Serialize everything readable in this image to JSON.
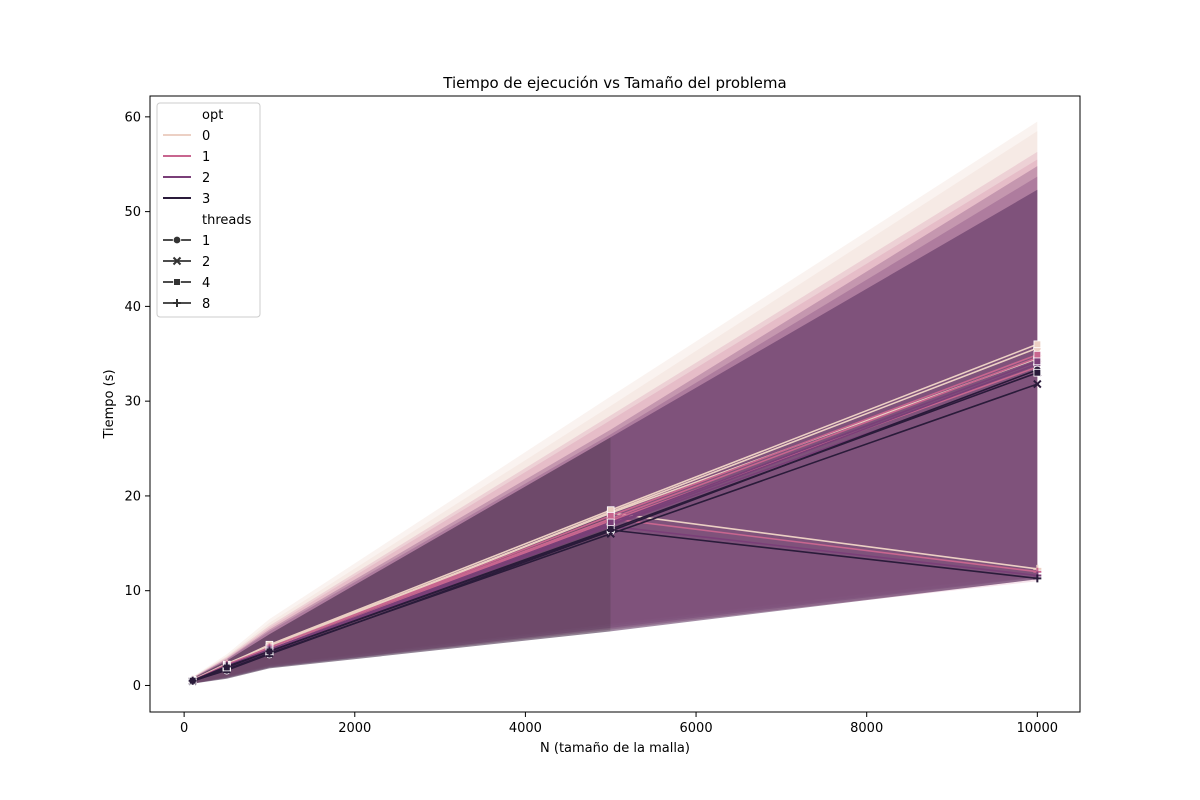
{
  "chart_data": {
    "type": "line",
    "title": "Tiempo de ejecución vs Tamaño del problema",
    "xlabel": "N (tamaño de la malla)",
    "ylabel": "Tiempo (s)",
    "xlim": [
      -400,
      10500
    ],
    "ylim": [
      -2.8,
      62.2
    ],
    "xticks": [
      0,
      2000,
      4000,
      6000,
      8000,
      10000
    ],
    "yticks": [
      0,
      10,
      20,
      30,
      40,
      50,
      60
    ],
    "grid": false,
    "legend_position": "top-left",
    "legend": {
      "hue_title": "opt",
      "hue_entries": [
        {
          "label": "0",
          "color": "#ecd0c4"
        },
        {
          "label": "1",
          "color": "#c8668f"
        },
        {
          "label": "2",
          "color": "#7a3f78"
        },
        {
          "label": "3",
          "color": "#2a1b3a"
        }
      ],
      "style_title": "threads",
      "style_entries": [
        {
          "label": "1",
          "marker": "circle"
        },
        {
          "label": "2",
          "marker": "x"
        },
        {
          "label": "4",
          "marker": "square"
        },
        {
          "label": "8",
          "marker": "plus"
        }
      ]
    },
    "x": [
      100,
      500,
      1000,
      5000,
      10000
    ],
    "series": [
      {
        "opt": "0",
        "threads": "1",
        "color": "#ecd0c4",
        "marker": "circle",
        "values": [
          0.55,
          1.9,
          3.9,
          18.3,
          35.6
        ]
      },
      {
        "opt": "0",
        "threads": "2",
        "color": "#ecd0c4",
        "marker": "x",
        "values": [
          0.5,
          2.0,
          4.0,
          18.2,
          34.5
        ]
      },
      {
        "opt": "0",
        "threads": "4",
        "color": "#ecd0c4",
        "marker": "square",
        "values": [
          0.6,
          2.2,
          4.3,
          18.5,
          36.0
        ]
      },
      {
        "opt": "0",
        "threads": "8",
        "color": "#ecd0c4",
        "marker": "plus",
        "values": [
          0.6,
          2.3,
          4.2,
          18.2,
          12.3
        ]
      },
      {
        "opt": "1",
        "threads": "1",
        "color": "#c8668f",
        "marker": "circle",
        "values": [
          0.55,
          1.8,
          3.7,
          17.6,
          34.6
        ]
      },
      {
        "opt": "1",
        "threads": "2",
        "color": "#c8668f",
        "marker": "x",
        "values": [
          0.5,
          1.9,
          3.8,
          17.4,
          33.6
        ]
      },
      {
        "opt": "1",
        "threads": "4",
        "color": "#c8668f",
        "marker": "square",
        "values": [
          0.55,
          2.1,
          4.0,
          17.9,
          34.9
        ]
      },
      {
        "opt": "1",
        "threads": "8",
        "color": "#c8668f",
        "marker": "plus",
        "values": [
          0.55,
          2.2,
          4.0,
          17.6,
          12.0
        ]
      },
      {
        "opt": "2",
        "threads": "1",
        "color": "#7a3f78",
        "marker": "circle",
        "values": [
          0.5,
          1.7,
          3.5,
          17.0,
          33.9
        ]
      },
      {
        "opt": "2",
        "threads": "2",
        "color": "#7a3f78",
        "marker": "x",
        "values": [
          0.5,
          1.8,
          3.6,
          16.9,
          33.0
        ]
      },
      {
        "opt": "2",
        "threads": "4",
        "color": "#7a3f78",
        "marker": "square",
        "values": [
          0.55,
          2.0,
          3.8,
          17.2,
          34.2
        ]
      },
      {
        "opt": "2",
        "threads": "8",
        "color": "#7a3f78",
        "marker": "plus",
        "values": [
          0.5,
          2.1,
          3.8,
          16.8,
          11.6
        ]
      },
      {
        "opt": "3",
        "threads": "1",
        "color": "#2a1b3a",
        "marker": "circle",
        "values": [
          0.5,
          1.6,
          3.3,
          16.3,
          33.3
        ]
      },
      {
        "opt": "3",
        "threads": "2",
        "color": "#2a1b3a",
        "marker": "x",
        "values": [
          0.45,
          1.7,
          3.4,
          16.0,
          31.8
        ]
      },
      {
        "opt": "3",
        "threads": "4",
        "color": "#2a1b3a",
        "marker": "square",
        "values": [
          0.5,
          1.9,
          3.6,
          16.5,
          33.0
        ]
      },
      {
        "opt": "3",
        "threads": "8",
        "color": "#2a1b3a",
        "marker": "plus",
        "values": [
          0.5,
          2.0,
          3.6,
          16.4,
          11.3
        ]
      }
    ],
    "confidence_bands": [
      {
        "opt": "0",
        "color": "#ecd0c4",
        "opacity": 0.25,
        "lower": [
          0.2,
          0.9,
          2.0,
          5.8,
          11.2
        ],
        "upper": [
          0.9,
          3.3,
          7.0,
          30.5,
          59.5
        ]
      },
      {
        "opt": "0",
        "color": "#ecd0c4",
        "opacity": 0.25,
        "lower": [
          0.2,
          1.0,
          2.2,
          6.5,
          11.8
        ],
        "upper": [
          0.9,
          3.1,
          6.6,
          29.5,
          58.5
        ]
      },
      {
        "opt": "1",
        "color": "#c8668f",
        "opacity": 0.18,
        "lower": [
          0.2,
          0.9,
          2.0,
          6.0,
          11.0
        ],
        "upper": [
          0.85,
          3.0,
          6.3,
          28.5,
          56.3
        ]
      },
      {
        "opt": "1",
        "color": "#c8668f",
        "opacity": 0.18,
        "lower": [
          0.2,
          0.9,
          2.1,
          6.3,
          11.5
        ],
        "upper": [
          0.85,
          2.9,
          6.1,
          28.0,
          55.5
        ]
      },
      {
        "opt": "2",
        "color": "#7a3f78",
        "opacity": 0.3,
        "lower": [
          0.2,
          0.8,
          1.9,
          5.9,
          11.2
        ],
        "upper": [
          0.8,
          2.8,
          5.9,
          27.0,
          54.8
        ]
      },
      {
        "opt": "2",
        "color": "#7a3f78",
        "opacity": 0.3,
        "lower": [
          0.2,
          0.8,
          1.9,
          6.1,
          11.4
        ],
        "upper": [
          0.8,
          2.75,
          5.7,
          26.5,
          53.7
        ]
      },
      {
        "opt": "3",
        "color": "#3b1f40",
        "opacity": 0.55,
        "lower": [
          0.2,
          0.7,
          1.8,
          5.7,
          null
        ],
        "upper": [
          0.75,
          2.6,
          5.4,
          26.2,
          null
        ]
      },
      {
        "opt": "3",
        "color": "#5a2f5f",
        "opacity": 0.55,
        "lower": [
          null,
          null,
          null,
          5.7,
          11.2
        ],
        "upper": [
          null,
          null,
          null,
          26.2,
          52.3
        ]
      }
    ]
  }
}
